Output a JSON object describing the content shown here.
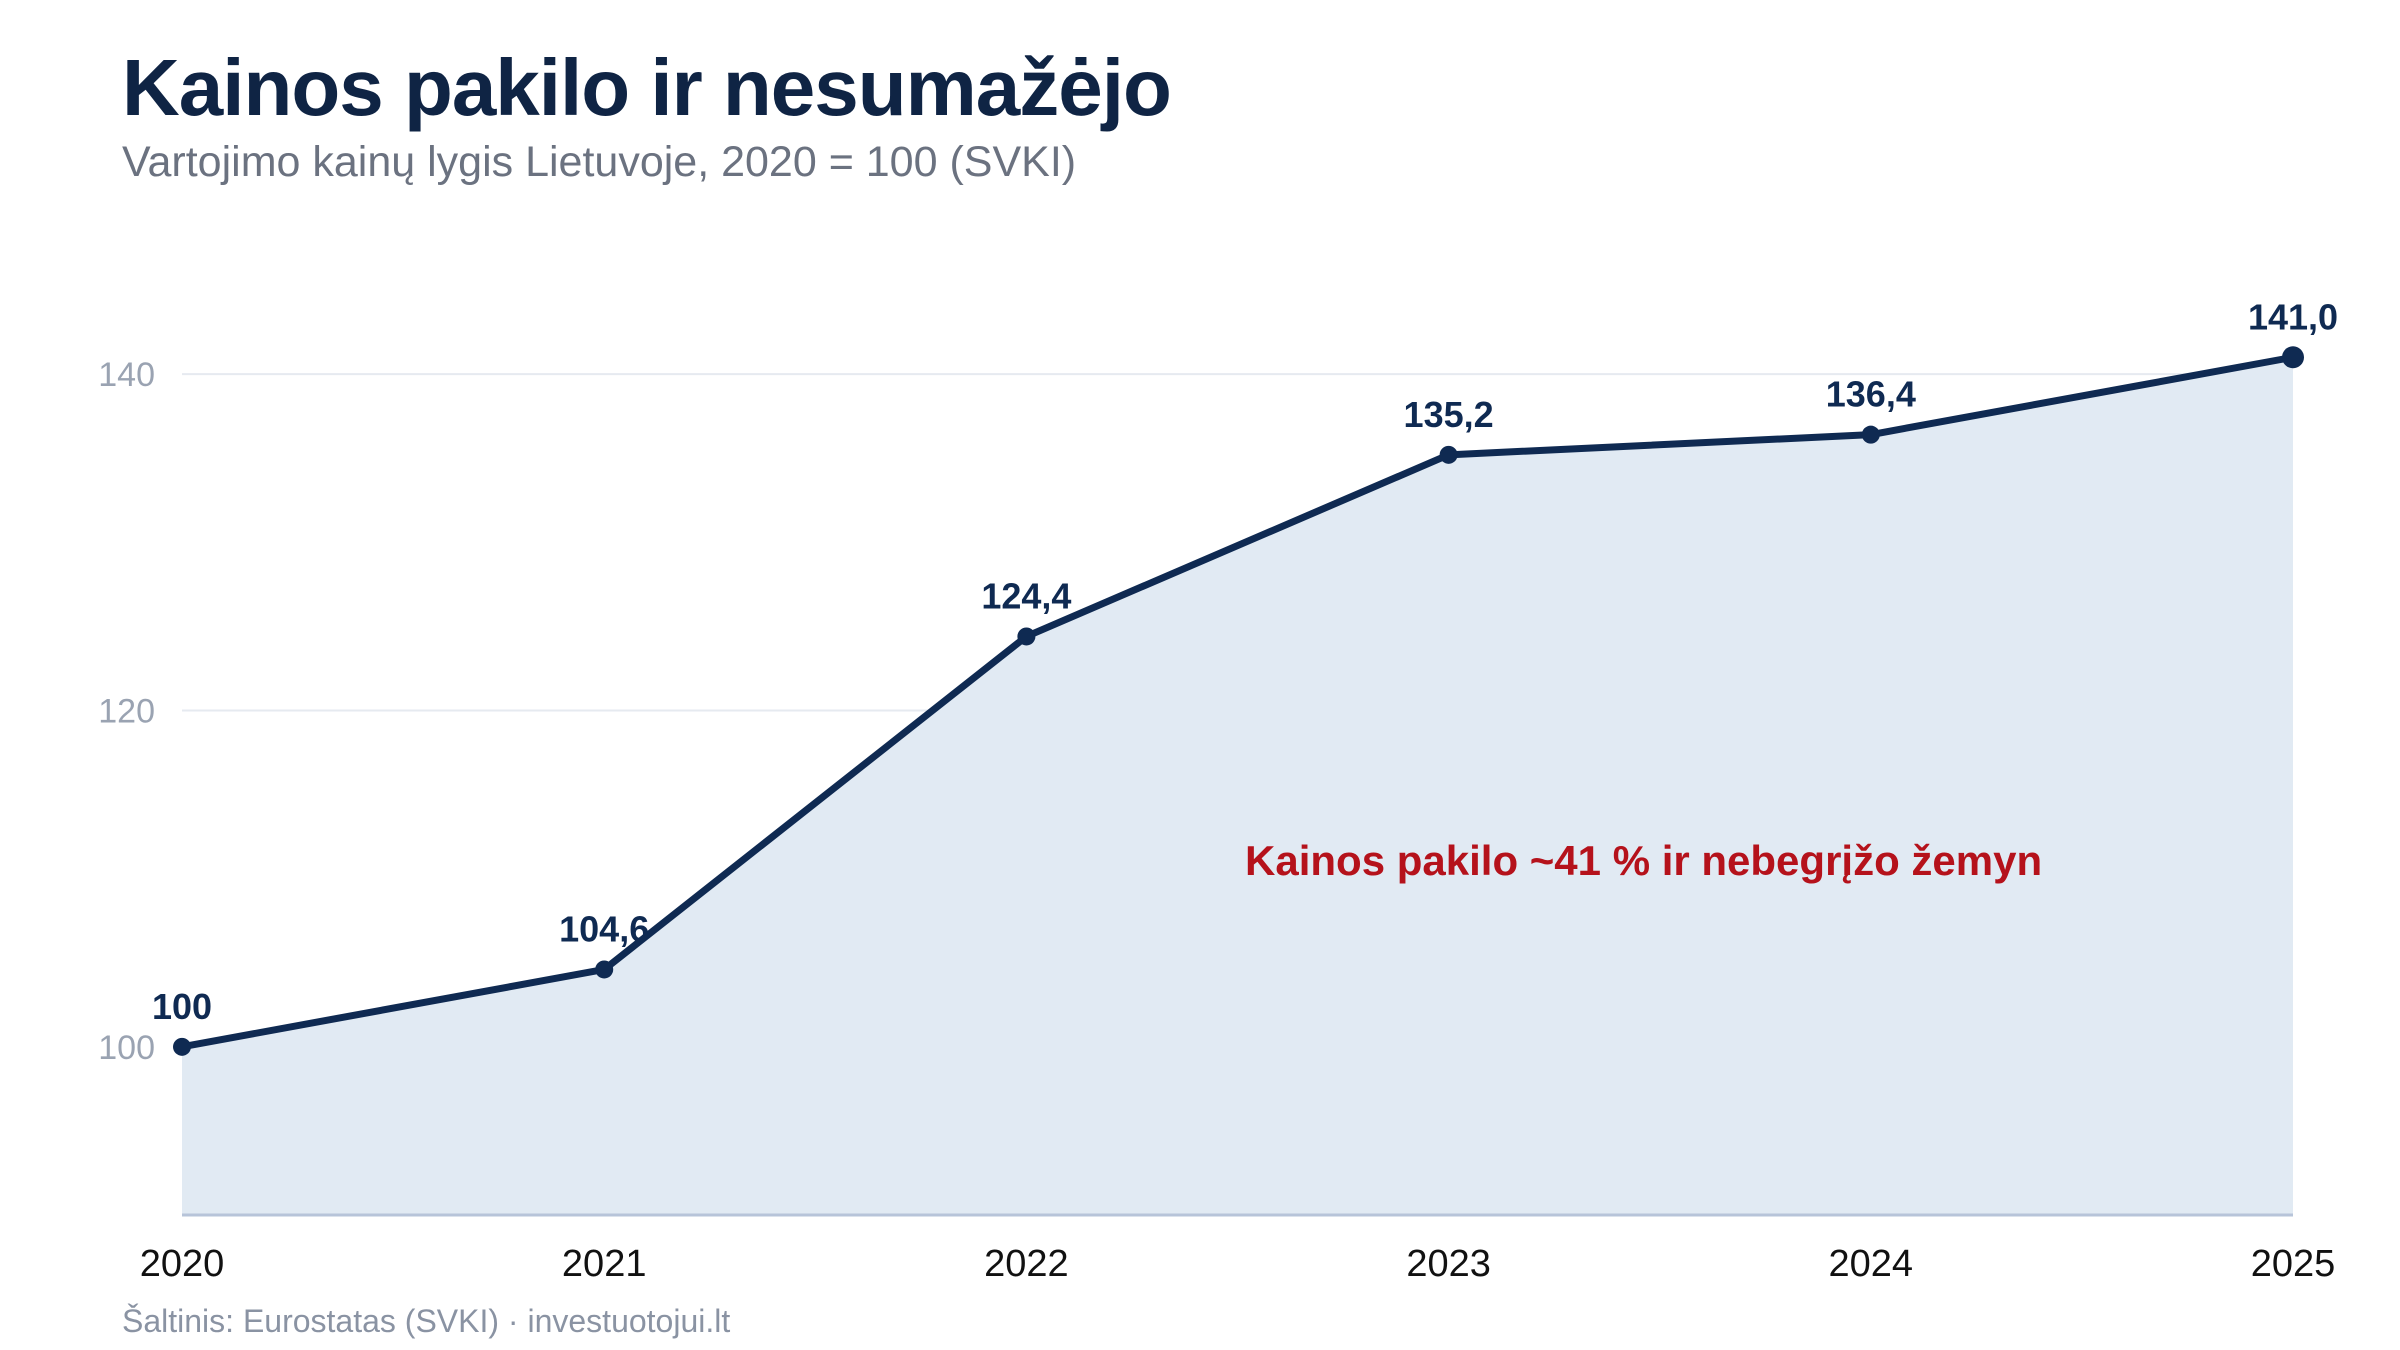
{
  "colors": {
    "line": "#0f2a52",
    "area": "#e1eaf3",
    "grid": "#e6eaf0",
    "baseline": "#b7c4d9",
    "ytick": "#9aa3b2",
    "xtick": "#111111",
    "annotation": "#b5121b",
    "title": "#0f2444",
    "subtitle": "#6b7280",
    "source": "#8a93a3"
  },
  "title": "Kainos pakilo ir nesumažėjo",
  "subtitle": "Vartojimo kainų lygis Lietuvoje, 2020 = 100 (SVKI)",
  "source": "Šaltinis: Eurostatas (SVKI) · investuotojui.lt",
  "chart_data": {
    "type": "area",
    "x": [
      "2020",
      "2021",
      "2022",
      "2023",
      "2024",
      "2025"
    ],
    "series": [
      {
        "values": [
          100,
          104.6,
          124.4,
          135.2,
          136.4,
          141.0
        ],
        "labels": [
          "100",
          "104,6",
          "124,4",
          "135,2",
          "136,4",
          "141,0"
        ]
      }
    ],
    "ylim": [
      90,
      145
    ],
    "yticks": [
      100,
      120,
      140
    ],
    "grid": true,
    "annotation": {
      "text": "Kainos pakilo ~41 % ir nebegrįžo žemyn",
      "x": "2023",
      "y": 111
    }
  }
}
